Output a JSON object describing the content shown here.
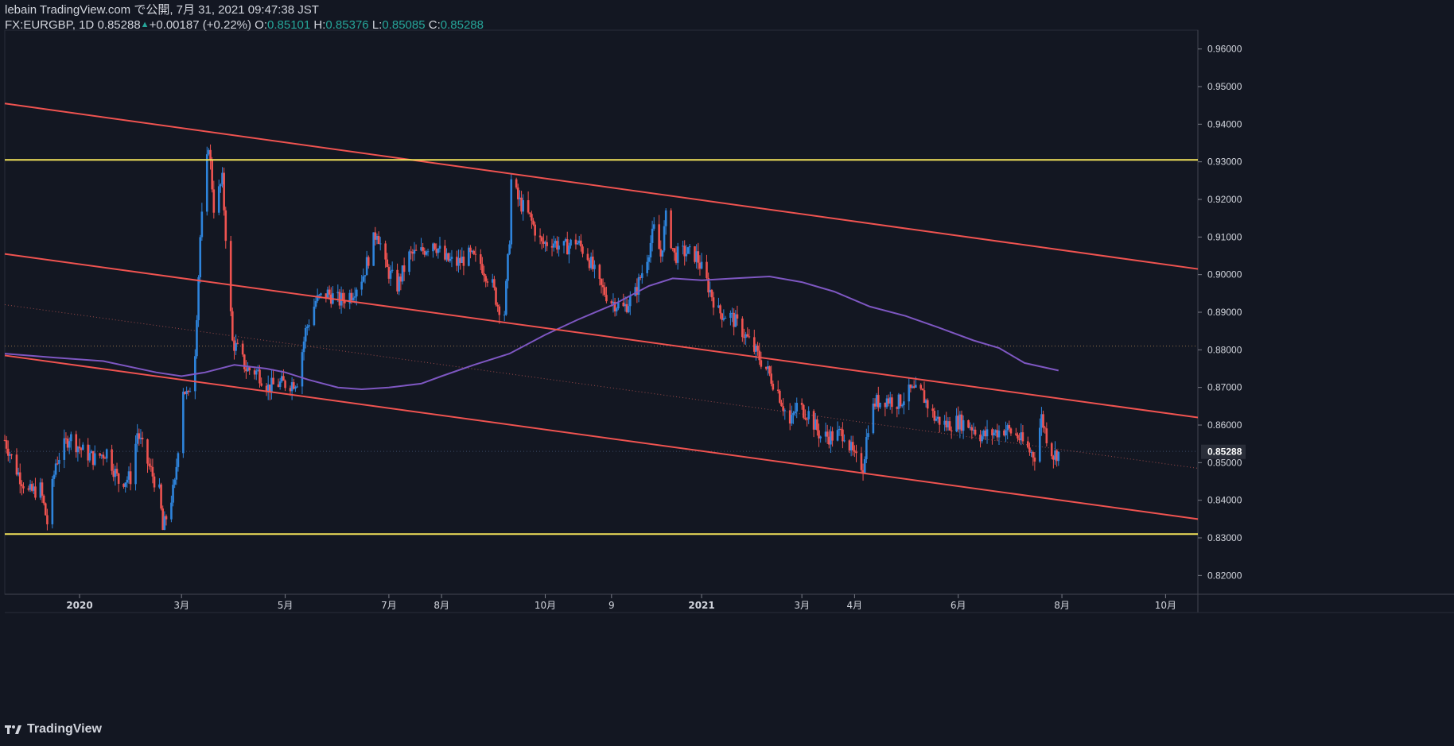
{
  "header": {
    "publisher": "lebain TradingView.com で公開, 7月 31, 2021 09:47:38 JST",
    "symbol": "FX:EURGBP, 1D",
    "last": "0.85288",
    "change": "+0.00187 (+0.22%)",
    "open_label": "O:",
    "open": "0.85101",
    "high_label": "H:",
    "high": "0.85376",
    "low_label": "L:",
    "low": "0.85085",
    "close_label": "C:",
    "close": "0.85288"
  },
  "footer": {
    "brand": "TradingView",
    "logo_icon": "tradingview-logo-icon"
  },
  "colors": {
    "background": "#131722",
    "up": "#2e84dc",
    "down": "#ef5350",
    "channel": "#ef5350",
    "horizontal": "#f2e25a",
    "ma": "#7e57c2",
    "price_label_bg": "#2a2e39",
    "text": "#d1d4dc",
    "up_text": "#26a69a"
  },
  "chart_data": {
    "type": "candlestick",
    "symbol": "FX:EURGBP",
    "timeframe": "1D",
    "ylim": [
      0.815,
      0.965
    ],
    "xlim": [
      "2019-11-18",
      "2021-10-20"
    ],
    "y_ticks": [
      0.96,
      0.95,
      0.94,
      0.93,
      0.92,
      0.91,
      0.9,
      0.89,
      0.88,
      0.87,
      0.86,
      0.85,
      0.84,
      0.83,
      0.82
    ],
    "y_tick_labels": [
      "0.96000",
      "0.95000",
      "0.94000",
      "0.93000",
      "0.92000",
      "0.91000",
      "0.90000",
      "0.89000",
      "0.88000",
      "0.87000",
      "0.86000",
      "0.85000",
      "0.84000",
      "0.83000",
      "0.82000"
    ],
    "x_ticks": [
      {
        "label": "2020",
        "date": "2020-01-01"
      },
      {
        "label": "3月",
        "date": "2020-03-01"
      },
      {
        "label": "5月",
        "date": "2020-05-01"
      },
      {
        "label": "7月",
        "date": "2020-07-01"
      },
      {
        "label": "8月",
        "date": "2020-08-01"
      },
      {
        "label": "10月",
        "date": "2020-10-01"
      },
      {
        "label": "9",
        "date": "2020-11-09"
      },
      {
        "label": "2021",
        "date": "2021-01-01"
      },
      {
        "label": "3月",
        "date": "2021-03-01"
      },
      {
        "label": "4月",
        "date": "2021-04-01"
      },
      {
        "label": "6月",
        "date": "2021-06-01"
      },
      {
        "label": "8月",
        "date": "2021-08-01"
      },
      {
        "label": "10月",
        "date": "2021-10-01"
      }
    ],
    "last_price": 0.85288,
    "last_price_label": "0.85288",
    "price_path": [
      [
        "2019-11-18",
        0.856
      ],
      [
        "2019-11-25",
        0.848
      ],
      [
        "2019-12-02",
        0.842
      ],
      [
        "2019-12-09",
        0.843
      ],
      [
        "2019-12-13",
        0.834
      ],
      [
        "2019-12-18",
        0.85
      ],
      [
        "2019-12-26",
        0.857
      ],
      [
        "2020-01-03",
        0.853
      ],
      [
        "2020-01-10",
        0.851
      ],
      [
        "2020-01-17",
        0.853
      ],
      [
        "2020-01-24",
        0.845
      ],
      [
        "2020-01-31",
        0.846
      ],
      [
        "2020-02-04",
        0.858
      ],
      [
        "2020-02-10",
        0.85
      ],
      [
        "2020-02-17",
        0.842
      ],
      [
        "2020-02-19",
        0.832
      ],
      [
        "2020-02-26",
        0.844
      ],
      [
        "2020-03-02",
        0.87
      ],
      [
        "2020-03-05",
        0.867
      ],
      [
        "2020-03-09",
        0.88
      ],
      [
        "2020-03-12",
        0.91
      ],
      [
        "2020-03-17",
        0.935
      ],
      [
        "2020-03-20",
        0.918
      ],
      [
        "2020-03-25",
        0.925
      ],
      [
        "2020-03-31",
        0.882
      ],
      [
        "2020-04-03",
        0.88
      ],
      [
        "2020-04-08",
        0.875
      ],
      [
        "2020-04-15",
        0.874
      ],
      [
        "2020-04-21",
        0.87
      ],
      [
        "2020-04-27",
        0.871
      ],
      [
        "2020-05-04",
        0.871
      ],
      [
        "2020-05-08",
        0.872
      ],
      [
        "2020-05-13",
        0.885
      ],
      [
        "2020-05-19",
        0.893
      ],
      [
        "2020-05-26",
        0.895
      ],
      [
        "2020-06-02",
        0.893
      ],
      [
        "2020-06-09",
        0.895
      ],
      [
        "2020-06-16",
        0.9
      ],
      [
        "2020-06-22",
        0.909
      ],
      [
        "2020-06-24",
        0.912
      ],
      [
        "2020-06-29",
        0.902
      ],
      [
        "2020-07-06",
        0.897
      ],
      [
        "2020-07-13",
        0.905
      ],
      [
        "2020-07-20",
        0.906
      ],
      [
        "2020-07-27",
        0.909
      ],
      [
        "2020-08-03",
        0.904
      ],
      [
        "2020-08-10",
        0.903
      ],
      [
        "2020-08-17",
        0.905
      ],
      [
        "2020-08-24",
        0.903
      ],
      [
        "2020-08-31",
        0.897
      ],
      [
        "2020-09-03",
        0.892
      ],
      [
        "2020-09-07",
        0.89
      ],
      [
        "2020-09-10",
        0.91
      ],
      [
        "2020-09-11",
        0.925
      ],
      [
        "2020-09-15",
        0.92
      ],
      [
        "2020-09-22",
        0.915
      ],
      [
        "2020-09-29",
        0.908
      ],
      [
        "2020-10-05",
        0.909
      ],
      [
        "2020-10-12",
        0.907
      ],
      [
        "2020-10-19",
        0.909
      ],
      [
        "2020-10-26",
        0.905
      ],
      [
        "2020-11-02",
        0.897
      ],
      [
        "2020-11-09",
        0.893
      ],
      [
        "2020-11-16",
        0.891
      ],
      [
        "2020-11-23",
        0.895
      ],
      [
        "2020-11-30",
        0.905
      ],
      [
        "2020-12-04",
        0.912
      ],
      [
        "2020-12-08",
        0.905
      ],
      [
        "2020-12-11",
        0.915
      ],
      [
        "2020-12-16",
        0.905
      ],
      [
        "2020-12-22",
        0.906
      ],
      [
        "2020-12-29",
        0.905
      ],
      [
        "2021-01-04",
        0.898
      ],
      [
        "2021-01-11",
        0.89
      ],
      [
        "2021-01-18",
        0.889
      ],
      [
        "2021-01-25",
        0.885
      ],
      [
        "2021-02-01",
        0.88
      ],
      [
        "2021-02-08",
        0.875
      ],
      [
        "2021-02-15",
        0.869
      ],
      [
        "2021-02-22",
        0.86
      ],
      [
        "2021-02-26",
        0.865
      ],
      [
        "2021-03-05",
        0.863
      ],
      [
        "2021-03-12",
        0.857
      ],
      [
        "2021-03-19",
        0.857
      ],
      [
        "2021-03-26",
        0.858
      ],
      [
        "2021-04-01",
        0.851
      ],
      [
        "2021-04-06",
        0.849
      ],
      [
        "2021-04-09",
        0.86
      ],
      [
        "2021-04-13",
        0.866
      ],
      [
        "2021-04-20",
        0.867
      ],
      [
        "2021-04-27",
        0.866
      ],
      [
        "2021-05-04",
        0.869
      ],
      [
        "2021-05-11",
        0.868
      ],
      [
        "2021-05-18",
        0.862
      ],
      [
        "2021-05-25",
        0.86
      ],
      [
        "2021-06-01",
        0.861
      ],
      [
        "2021-06-08",
        0.86
      ],
      [
        "2021-06-15",
        0.857
      ],
      [
        "2021-06-22",
        0.858
      ],
      [
        "2021-06-29",
        0.859
      ],
      [
        "2021-07-06",
        0.857
      ],
      [
        "2021-07-13",
        0.853
      ],
      [
        "2021-07-16",
        0.852
      ],
      [
        "2021-07-20",
        0.862
      ],
      [
        "2021-07-23",
        0.857
      ],
      [
        "2021-07-27",
        0.852
      ],
      [
        "2021-07-30",
        0.85288
      ]
    ],
    "moving_average": [
      [
        "2019-11-18",
        0.879
      ],
      [
        "2019-12-15",
        0.878
      ],
      [
        "2020-01-15",
        0.877
      ],
      [
        "2020-02-15",
        0.874
      ],
      [
        "2020-03-01",
        0.873
      ],
      [
        "2020-03-15",
        0.874
      ],
      [
        "2020-04-01",
        0.876
      ],
      [
        "2020-04-20",
        0.875
      ],
      [
        "2020-05-01",
        0.874
      ],
      [
        "2020-05-15",
        0.872
      ],
      [
        "2020-06-01",
        0.87
      ],
      [
        "2020-06-15",
        0.8695
      ],
      [
        "2020-07-01",
        0.87
      ],
      [
        "2020-07-20",
        0.871
      ],
      [
        "2020-08-01",
        0.873
      ],
      [
        "2020-08-20",
        0.876
      ],
      [
        "2020-09-10",
        0.879
      ],
      [
        "2020-10-01",
        0.884
      ],
      [
        "2020-10-20",
        0.888
      ],
      [
        "2020-11-10",
        0.892
      ],
      [
        "2020-12-01",
        0.897
      ],
      [
        "2020-12-15",
        0.899
      ],
      [
        "2021-01-01",
        0.8985
      ],
      [
        "2021-01-20",
        0.899
      ],
      [
        "2021-02-10",
        0.8995
      ],
      [
        "2021-03-01",
        0.898
      ],
      [
        "2021-03-20",
        0.8955
      ],
      [
        "2021-04-10",
        0.8915
      ],
      [
        "2021-05-01",
        0.889
      ],
      [
        "2021-05-20",
        0.886
      ],
      [
        "2021-06-10",
        0.8825
      ],
      [
        "2021-06-25",
        0.8805
      ],
      [
        "2021-07-10",
        0.8765
      ],
      [
        "2021-07-30",
        0.8745
      ]
    ],
    "channel_lines": [
      {
        "name": "upper",
        "from": [
          "2019-11-18",
          0.9455
        ],
        "to": [
          "2021-10-20",
          0.9015
        ]
      },
      {
        "name": "middle",
        "from": [
          "2019-11-18",
          0.9055
        ],
        "to": [
          "2021-10-20",
          0.862
        ]
      },
      {
        "name": "lower",
        "from": [
          "2019-11-18",
          0.8785
        ],
        "to": [
          "2021-10-20",
          0.835
        ]
      }
    ],
    "channel_midline": {
      "from": [
        "2019-11-18",
        0.892
      ],
      "to": [
        "2021-10-20",
        0.8485
      ]
    },
    "horizontal_lines": [
      0.9305,
      0.831
    ],
    "dotted_levels": [
      0.881,
      0.853
    ],
    "grid": false,
    "legend": "none"
  }
}
